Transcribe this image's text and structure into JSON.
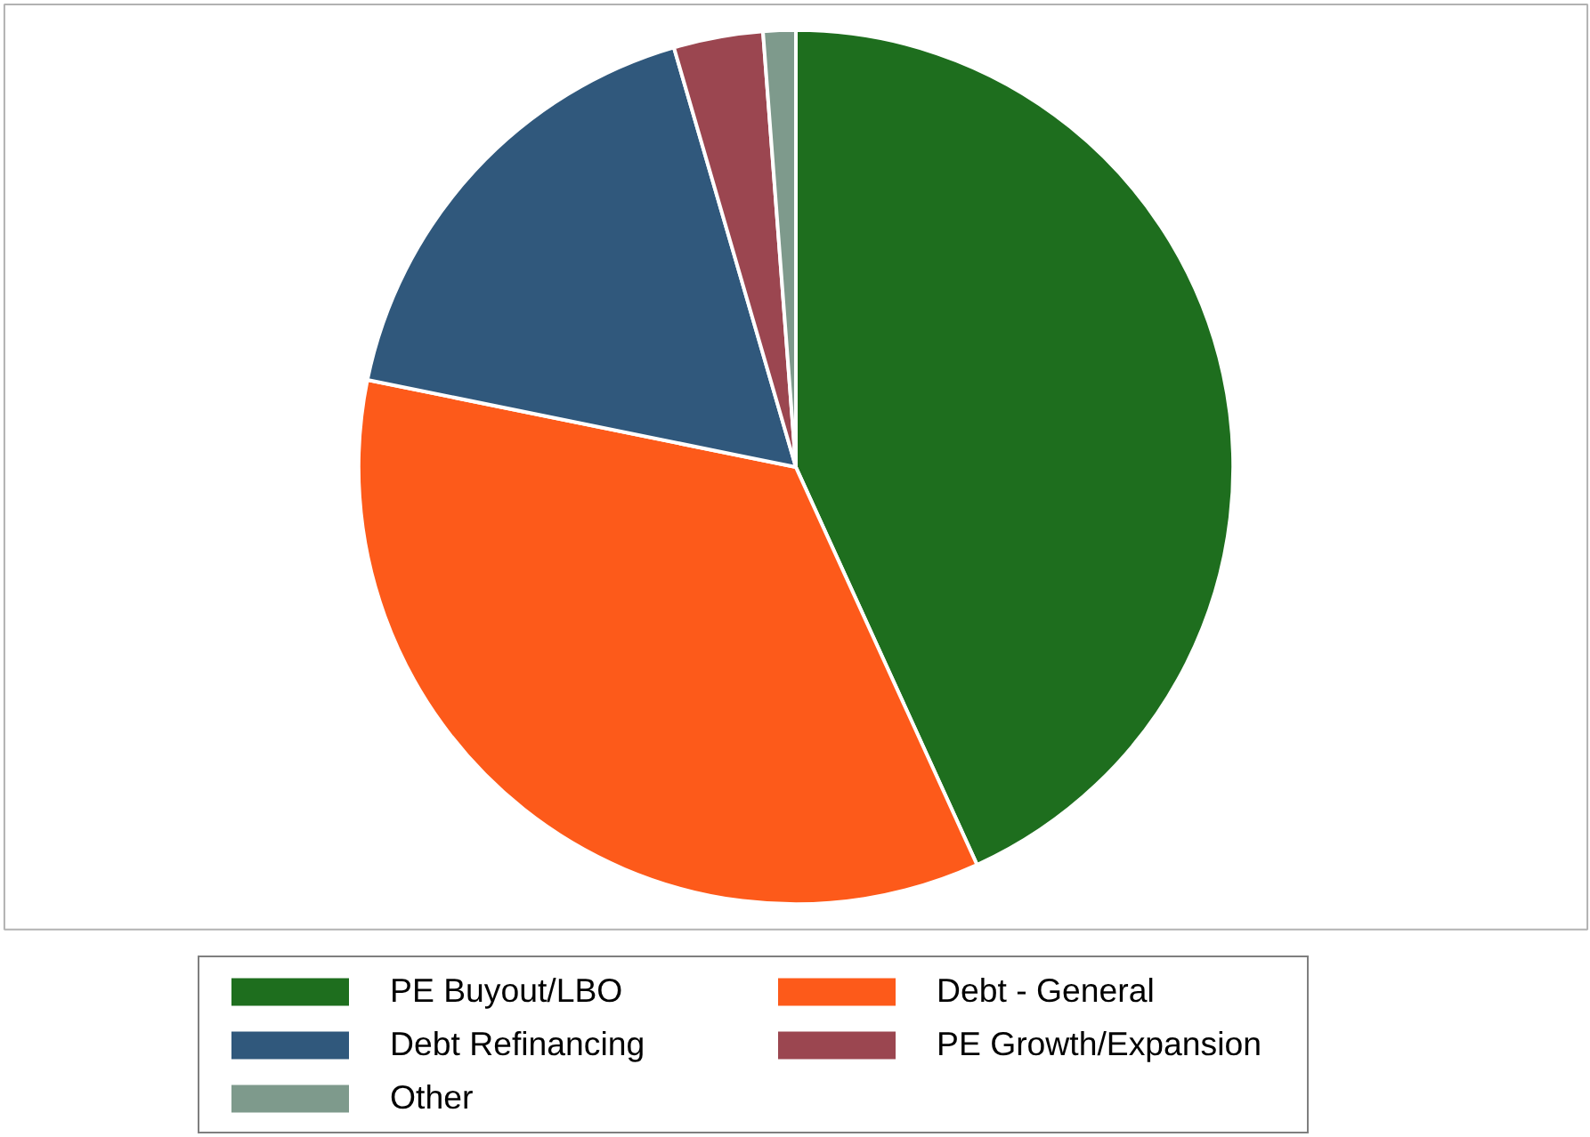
{
  "chart_data": {
    "type": "pie",
    "categories": [
      "PE Buyout/LBO",
      "Debt - General",
      "Debt Refinancing",
      "PE Growth/Expansion",
      "Other"
    ],
    "values": [
      43.2,
      35.0,
      17.3,
      3.3,
      1.2
    ],
    "colors": [
      "#1e6e1e",
      "#fd5a1a",
      "#30587c",
      "#9b4650",
      "#7e9a8c"
    ],
    "legend": "bottom"
  }
}
